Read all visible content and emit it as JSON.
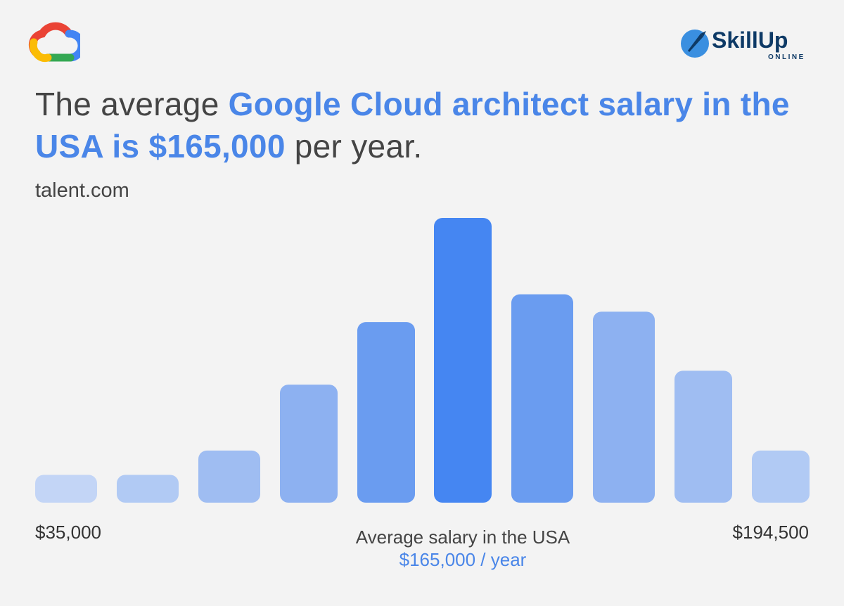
{
  "headline": {
    "part1": "The average ",
    "highlight": "Google Cloud architect salary in the USA is $165,000",
    "part2": " per year."
  },
  "source": "talent.com",
  "brand": {
    "right_logo_text": "SkillUp",
    "right_logo_sub": "ONLINE"
  },
  "chart_data": {
    "type": "bar",
    "categories": [
      "",
      "",
      "",
      "",
      "",
      "",
      "",
      "",
      "",
      ""
    ],
    "values": [
      8,
      8,
      15,
      34,
      52,
      82,
      60,
      55,
      38,
      15
    ],
    "ylim": [
      0,
      82
    ],
    "grid": false,
    "bar_colors": [
      "#c3d5f6",
      "#b1caf4",
      "#9fbdf2",
      "#8db1f1",
      "#6a9cf0",
      "#4586f2",
      "#6a9cf0",
      "#8db1f1",
      "#9fbdf2",
      "#b1caf4"
    ],
    "min_label": "$35,000",
    "max_label": "$194,500",
    "annotation": "Average salary in the USA",
    "annotation_value": "$165,000 / year"
  },
  "colors": {
    "accent": "#4a86e8",
    "text": "#444444",
    "background": "#f3f3f3"
  },
  "icons": {
    "left_logo": "google-cloud-logo-icon",
    "right_logo": "skillup-rocket-icon"
  }
}
